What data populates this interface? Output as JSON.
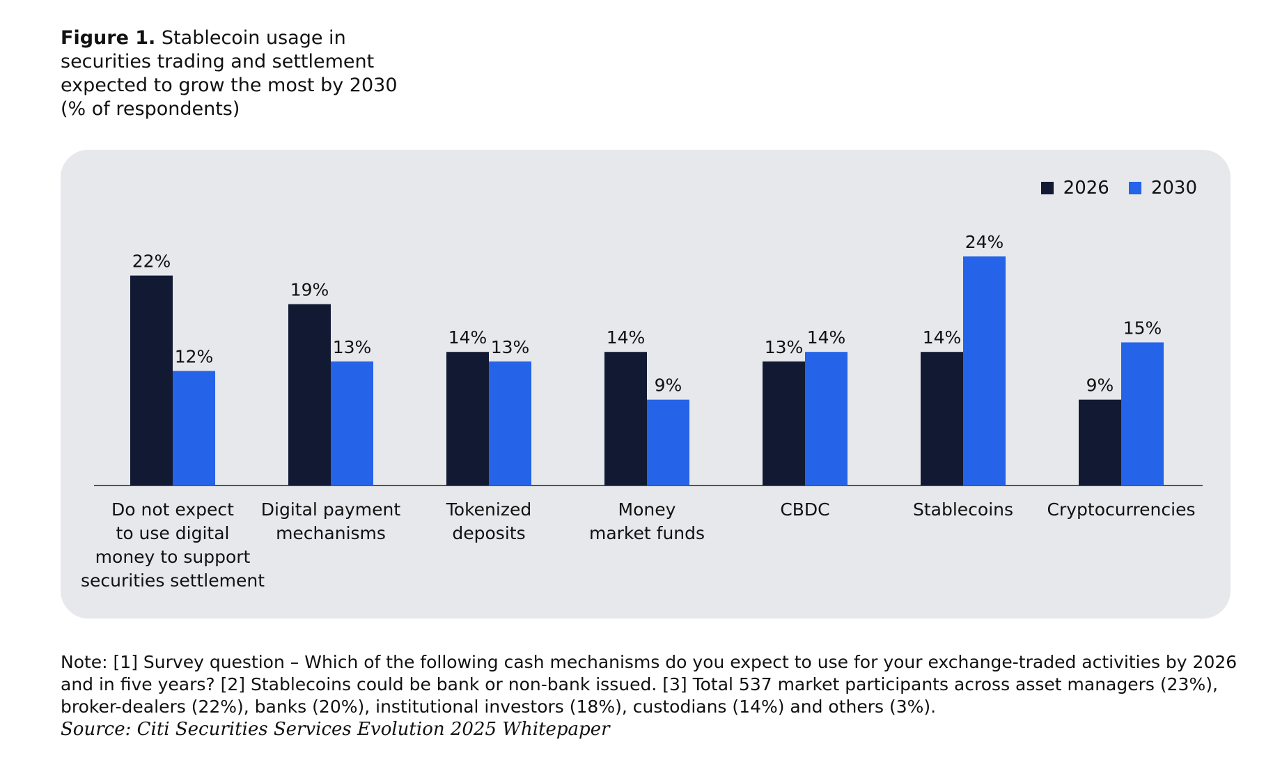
{
  "figure": {
    "label": "Figure 1.",
    "title": "Stablecoin usage in securities trading and settlement expected to grow the most by 2030 (% of respondents)"
  },
  "colors": {
    "series_2026": "#121a33",
    "series_2030": "#2563e8",
    "panel_bg": "#e6e8eb",
    "axis": "#555555"
  },
  "chart_data": {
    "type": "bar",
    "title": "Stablecoin usage in securities trading and settlement expected to grow the most by 2030 (% of respondents)",
    "xlabel": "",
    "ylabel": "",
    "ylim": [
      0,
      25
    ],
    "grid": false,
    "legend_position": "top-right",
    "value_suffix": "%",
    "categories": [
      [
        "Do not expect",
        "to use digital",
        "money to support",
        "securities settlement"
      ],
      [
        "Digital payment",
        "mechanisms"
      ],
      [
        "Tokenized",
        "deposits"
      ],
      [
        "Money",
        "market funds"
      ],
      [
        "CBDC"
      ],
      [
        "Stablecoins"
      ],
      [
        "Cryptocurrencies"
      ]
    ],
    "series": [
      {
        "name": "2026",
        "values": [
          22,
          19,
          14,
          14,
          13,
          14,
          9
        ]
      },
      {
        "name": "2030",
        "values": [
          12,
          13,
          13,
          9,
          14,
          24,
          15
        ]
      }
    ]
  },
  "notes": {
    "note": "Note: [1] Survey question – Which of the following cash mechanisms do you expect to use for your exchange-traded activities by 2026 and in five years? [2] Stablecoins could be bank or non-bank issued. [3] Total 537 market participants across asset managers (23%), broker-dealers (22%), banks (20%), institutional investors (18%), custodians (14%) and others (3%).",
    "source": "Source: Citi Securities Services Evolution 2025 Whitepaper"
  }
}
